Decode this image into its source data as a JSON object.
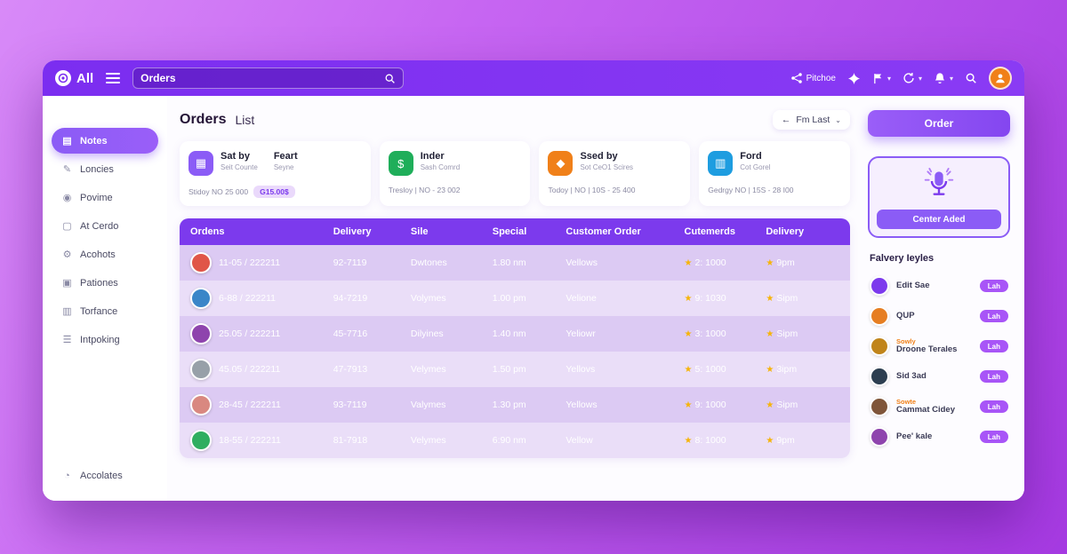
{
  "topbar": {
    "logo_text": "All",
    "search_value": "Orders",
    "share_label": "Pitchoe"
  },
  "sidebar": {
    "items": [
      {
        "icon": "▤",
        "label": "Notes",
        "active": true
      },
      {
        "icon": "✎",
        "label": "Loncies",
        "active": false
      },
      {
        "icon": "◉",
        "label": "Povime",
        "active": false
      },
      {
        "icon": "▢",
        "label": "At Cerdo",
        "active": false
      },
      {
        "icon": "⚙",
        "label": "Acohots",
        "active": false
      },
      {
        "icon": "▣",
        "label": "Pationes",
        "active": false
      },
      {
        "icon": "▥",
        "label": "Torfance",
        "active": false
      },
      {
        "icon": "☰",
        "label": "Intpoking",
        "active": false
      }
    ],
    "footer": {
      "icon": "◔",
      "label": "Accolates"
    }
  },
  "header": {
    "title": "Orders",
    "subtitle": "List",
    "back_arrow": "←",
    "sort_label": "Fm Last",
    "sort_caret": "⌄",
    "order_button": "Order"
  },
  "stats": [
    {
      "icon": "▦",
      "icon_bg": "#8b5cf6",
      "title": "Sat by",
      "subtitle": "Seit Counte",
      "title2": "Feart",
      "subtitle2": "Seyne",
      "foot": "Stidoy   NO   25 000",
      "badge": "G15.00$"
    },
    {
      "icon": "$",
      "icon_bg": "#1fae5a",
      "title": "Inder",
      "subtitle": "Sash Comrd",
      "title2": "",
      "subtitle2": "",
      "foot": "Tresloy  |  NO - 23 002",
      "badge": ""
    },
    {
      "icon": "◆",
      "icon_bg": "#f08019",
      "title": "Ssed by",
      "subtitle": "Sot CeO1 Scires",
      "title2": "",
      "subtitle2": "",
      "foot": "Todoy |  NO | 10S - 25 400",
      "badge": ""
    },
    {
      "icon": "▥",
      "icon_bg": "#1e9de0",
      "title": "Ford",
      "subtitle": "Cot Gorel",
      "title2": "",
      "subtitle2": "",
      "foot": "Gedrgy  NO | 15S - 28 I00",
      "badge": ""
    }
  ],
  "table": {
    "columns": [
      "Ordens",
      "Delivery",
      "Sile",
      "Special",
      "Customer Order",
      "Cutemerds",
      "Delivery"
    ],
    "rows": [
      {
        "avatar_color": "#e05548",
        "order": "11-05 / 222211",
        "delivery": "92-7119",
        "sile": "Dwtones",
        "special": "1.80 nm",
        "customer": "Vellows",
        "rating": "2: 1000",
        "time": "9pm"
      },
      {
        "avatar_color": "#3a86c8",
        "order": "6-88 / 222211",
        "delivery": "94-7219",
        "sile": "Volymes",
        "special": "1.00 pm",
        "customer": "Velione",
        "rating": "9: 1030",
        "time": "Sipm"
      },
      {
        "avatar_color": "#8e44ad",
        "order": "25.05 / 222211",
        "delivery": "45-7716",
        "sile": "Dilyines",
        "special": "1.40 nm",
        "customer": "Yeliowr",
        "rating": "3: 1000",
        "time": "Sipm"
      },
      {
        "avatar_color": "#97a0a8",
        "order": "45.05 / 222211",
        "delivery": "47-7913",
        "sile": "Velymes",
        "special": "1.50 pm",
        "customer": "Yellovs",
        "rating": "5: 1000",
        "time": "3ipm"
      },
      {
        "avatar_color": "#d98880",
        "order": "28-45 / 222211",
        "delivery": "93-7119",
        "sile": "Valymes",
        "special": "1.30 pm",
        "customer": "Yellows",
        "rating": "9: 1000",
        "time": "Sipm"
      },
      {
        "avatar_color": "#2fae60",
        "order": "18-55 / 222211",
        "delivery": "81-7918",
        "sile": "Velymes",
        "special": "6:90 nm",
        "customer": "Vellow",
        "rating": "8: 1000",
        "time": "9pm"
      }
    ]
  },
  "right_panel": {
    "mic_card_label": "Center Aded",
    "list_title": "Falvery Ieyles",
    "items": [
      {
        "avatar_color": "#7c3aed",
        "sub": "",
        "name": "Edit Sae",
        "badge": "Lah"
      },
      {
        "avatar_color": "#e67e22",
        "sub": "",
        "name": "QUP",
        "badge": "Lah"
      },
      {
        "avatar_color": "#c0841a",
        "sub": "Sowly",
        "name": "Droone Terales",
        "badge": "Lah"
      },
      {
        "avatar_color": "#2c3e50",
        "sub": "",
        "name": "Sid 3ad",
        "badge": "Lah"
      },
      {
        "avatar_color": "#7f5539",
        "sub": "Sowte",
        "name": "Cammat Cidey",
        "badge": "Lah"
      },
      {
        "avatar_color": "#8e44ad",
        "sub": "",
        "name": "Pee' kale",
        "badge": "Lah"
      }
    ]
  }
}
